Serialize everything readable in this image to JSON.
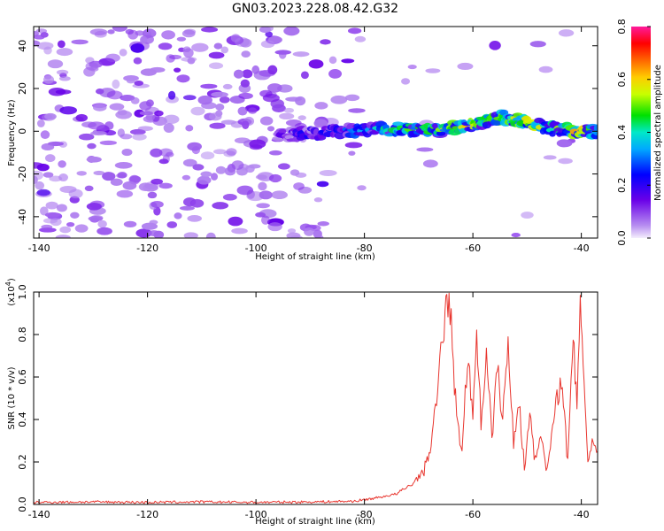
{
  "title": "GN03.2023.228.08.42.G32",
  "colors": {
    "snr_line": "#e8352e",
    "axis": "#000000",
    "colormap": [
      "#e8d8f8",
      "#8b00e8",
      "#3a00ff",
      "#00aaff",
      "#00e6c8",
      "#00e000",
      "#ffff00",
      "#ff8800",
      "#ff0000",
      "#ff1a9c"
    ]
  },
  "chart_data": [
    {
      "type": "heatmap",
      "title": "GN03.2023.228.08.42.G32",
      "xlabel": "Height of straight line (km)",
      "ylabel": "Frequency (Hz)",
      "xlim": [
        -141,
        -37
      ],
      "ylim": [
        -50,
        49
      ],
      "x_ticks": [
        -140,
        -120,
        -100,
        -80,
        -60,
        -40
      ],
      "y_ticks": [
        -40,
        -20,
        0,
        20,
        40
      ],
      "grid": false,
      "description_points": {
        "noise_region_x": [
          -140,
          -80
        ],
        "signal_ridge": [
          {
            "x": -95,
            "freq": -2,
            "amp": 0.2
          },
          {
            "x": -85,
            "freq": 0,
            "amp": 0.3
          },
          {
            "x": -80,
            "freq": 1,
            "amp": 0.35
          },
          {
            "x": -72,
            "freq": 1,
            "amp": 0.45
          },
          {
            "x": -65,
            "freq": 1,
            "amp": 0.55
          },
          {
            "x": -60,
            "freq": 3,
            "amp": 0.6
          },
          {
            "x": -55,
            "freq": 7,
            "amp": 0.5
          },
          {
            "x": -50,
            "freq": 4,
            "amp": 0.6
          },
          {
            "x": -45,
            "freq": 1,
            "amp": 0.5
          },
          {
            "x": -40,
            "freq": 0,
            "amp": 0.65
          },
          {
            "x": -37,
            "freq": 0,
            "amp": 0.35
          }
        ]
      },
      "colorbar": {
        "label": "Normalized spectral amplitude",
        "range": [
          0.0,
          0.8
        ],
        "ticks": [
          "0.0",
          "0.2",
          "0.4",
          "0.6",
          "0.8"
        ]
      }
    },
    {
      "type": "line",
      "xlabel": "Height of straight line (km)",
      "ylabel": "SNR (10 * v/v)",
      "y_multiplier": "(x10",
      "y_multiplier_exp": "4",
      "y_multiplier_close": ")",
      "xlim": [
        -141,
        -37
      ],
      "ylim": [
        0.0,
        1.0
      ],
      "x_ticks": [
        -140,
        -120,
        -100,
        -80,
        -60,
        -40
      ],
      "y_ticks": [
        "0.0",
        "0.2",
        "0.4",
        "0.6",
        "0.8",
        "1.0"
      ],
      "grid": false,
      "series": [
        {
          "x": [
            -141,
            -130,
            -120,
            -110,
            -100,
            -90,
            -82,
            -78,
            -74,
            -71,
            -69,
            -67.5,
            -66.5,
            -65.5,
            -64.8,
            -64,
            -63,
            -62,
            -61,
            -60,
            -59.3,
            -58.5,
            -57.5,
            -56.5,
            -55.5,
            -54.5,
            -53.5,
            -52.5,
            -51.5,
            -50.5,
            -49.5,
            -48.5,
            -47.5,
            -46.5,
            -45.5,
            -44.5,
            -43.5,
            -42.5,
            -41.5,
            -40.8,
            -40.2,
            -39.5,
            -38.8,
            -38,
            -37
          ],
          "y": [
            0.01,
            0.012,
            0.01,
            0.012,
            0.01,
            0.012,
            0.015,
            0.03,
            0.05,
            0.1,
            0.16,
            0.3,
            0.55,
            0.8,
            1.0,
            0.85,
            0.4,
            0.25,
            0.7,
            0.42,
            0.85,
            0.35,
            0.75,
            0.3,
            0.65,
            0.4,
            0.75,
            0.3,
            0.5,
            0.15,
            0.45,
            0.2,
            0.35,
            0.15,
            0.3,
            0.5,
            0.6,
            0.15,
            0.82,
            0.4,
            1.0,
            0.6,
            0.2,
            0.3,
            0.25
          ]
        }
      ]
    }
  ]
}
